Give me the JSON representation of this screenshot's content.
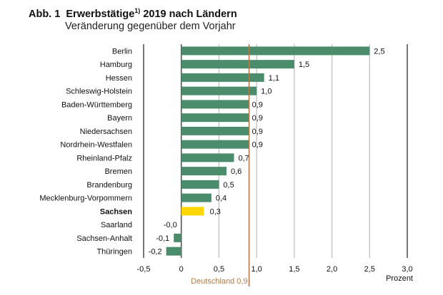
{
  "chart_data": {
    "type": "bar",
    "orientation": "horizontal",
    "title_prefix": "Abb. 1",
    "title": "Erwerbstätige",
    "title_footnote": "1)",
    "title_suffix": "2019 nach Ländern",
    "subtitle": "Veränderung gegenüber dem Vorjahr",
    "xlabel": "Prozent",
    "xlim": [
      -0.5,
      3.0
    ],
    "xticks": [
      -0.5,
      0,
      0.5,
      1.0,
      1.5,
      2.0,
      2.5,
      3.0
    ],
    "xtick_labels": [
      "-0,5",
      "0",
      "0,5",
      "1,0",
      "1,5",
      "2,0",
      "2,5",
      "3,0"
    ],
    "grid": "vertical",
    "categories": [
      "Berlin",
      "Hamburg",
      "Hessen",
      "Schleswig-Holstein",
      "Baden-Württemberg",
      "Bayern",
      "Niedersachsen",
      "Nordrhein-Westfalen",
      "Rheinland-Pfalz",
      "Bremen",
      "Brandenburg",
      "Mecklenburg-Vorpommern",
      "Sachsen",
      "Saarland",
      "Sachsen-Anhalt",
      "Thüringen"
    ],
    "values": [
      2.5,
      1.5,
      1.1,
      1.0,
      0.9,
      0.9,
      0.9,
      0.9,
      0.7,
      0.6,
      0.5,
      0.4,
      0.3,
      -0.0,
      -0.1,
      -0.2
    ],
    "data_labels": [
      "2,5",
      "1,5",
      "1,1",
      "1,0",
      "0,9",
      "0,9",
      "0,9",
      "0,9",
      "0,7",
      "0,6",
      "0,5",
      "0,4",
      "0,3",
      "-0,0",
      "-0,1",
      "-0,2"
    ],
    "highlight": "Sachsen",
    "reference_line": {
      "label": "Deutschland 0,9",
      "value": 0.9,
      "color": "#b07a4a"
    },
    "colors": {
      "bar": "#4a8c6c",
      "highlight": "#ffd700",
      "grid": "#bdbdbd",
      "axis": "#555555"
    }
  }
}
